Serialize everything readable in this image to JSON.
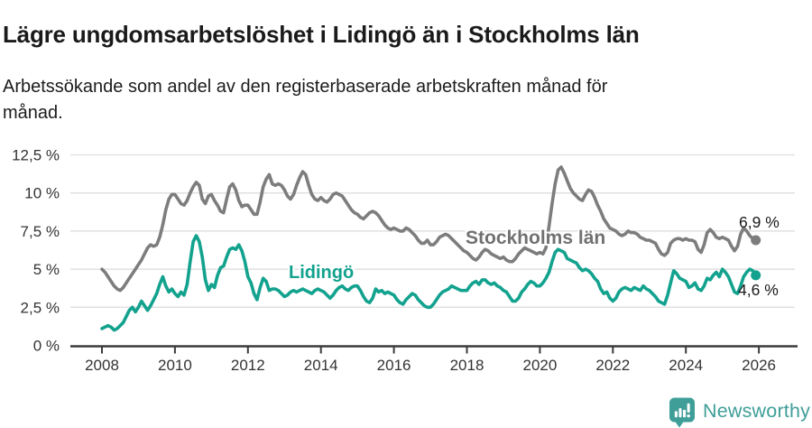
{
  "header": {
    "title": "Lägre ungdomsarbetslöshet i Lidingö än i Stockholms län",
    "subtitle": "Arbetssökande som andel av den registerbaserade arbetskraften månad för månad."
  },
  "chart_data": {
    "type": "line",
    "title": "Lägre ungdomsarbetslöshet i Lidingö än i Stockholms län",
    "x_unit": "month",
    "x_start": "2008-01",
    "x_end": "2025-12",
    "ylim": [
      0,
      12.5
    ],
    "grid": true,
    "legend_position": "inline-labels",
    "y_axis": {
      "ticks": [
        {
          "value": 0,
          "label": "0 %"
        },
        {
          "value": 2.5,
          "label": "2,5 %"
        },
        {
          "value": 5,
          "label": "5 %"
        },
        {
          "value": 7.5,
          "label": "7,5 %"
        },
        {
          "value": 10,
          "label": "10 %"
        },
        {
          "value": 12.5,
          "label": "12,5 %"
        }
      ]
    },
    "x_axis": {
      "ticks": [
        {
          "value": 2008,
          "label": "2008"
        },
        {
          "value": 2010,
          "label": "2010"
        },
        {
          "value": 2012,
          "label": "2012"
        },
        {
          "value": 2014,
          "label": "2014"
        },
        {
          "value": 2016,
          "label": "2016"
        },
        {
          "value": 2018,
          "label": "2018"
        },
        {
          "value": 2020,
          "label": "2020"
        },
        {
          "value": 2022,
          "label": "2022"
        },
        {
          "value": 2024,
          "label": "2024"
        },
        {
          "value": 2026,
          "label": "2026"
        }
      ]
    },
    "series": [
      {
        "name": "Stockholms län",
        "color": "#7d7d7d",
        "end_label": "6,9 %",
        "end_value": 6.9,
        "values": [
          5.0,
          4.8,
          4.5,
          4.2,
          3.9,
          3.7,
          3.6,
          3.8,
          4.1,
          4.4,
          4.7,
          5.0,
          5.3,
          5.6,
          6.0,
          6.4,
          6.6,
          6.5,
          6.6,
          7.1,
          7.9,
          8.9,
          9.6,
          9.9,
          9.9,
          9.6,
          9.3,
          9.2,
          9.5,
          10.0,
          10.4,
          10.7,
          10.5,
          9.6,
          9.3,
          9.8,
          9.9,
          9.5,
          9.2,
          8.8,
          8.7,
          9.6,
          10.4,
          10.6,
          10.2,
          9.5,
          9.1,
          9.2,
          9.2,
          8.9,
          8.6,
          8.6,
          9.4,
          10.4,
          10.9,
          11.2,
          10.6,
          10.5,
          10.6,
          10.5,
          10.2,
          9.8,
          9.6,
          9.9,
          10.5,
          11.0,
          11.4,
          11.2,
          10.5,
          9.9,
          9.6,
          9.5,
          9.7,
          9.5,
          9.4,
          9.6,
          9.9,
          10.0,
          9.9,
          9.8,
          9.5,
          9.2,
          8.9,
          8.7,
          8.6,
          8.4,
          8.3,
          8.5,
          8.7,
          8.8,
          8.7,
          8.5,
          8.2,
          7.9,
          7.7,
          7.6,
          7.7,
          7.6,
          7.5,
          7.5,
          7.7,
          7.6,
          7.4,
          7.2,
          6.9,
          6.7,
          6.7,
          6.9,
          6.6,
          6.6,
          6.8,
          7.1,
          7.2,
          7.3,
          7.2,
          7.0,
          6.8,
          6.6,
          6.4,
          6.2,
          6.1,
          5.9,
          5.7,
          5.6,
          5.8,
          6.1,
          6.3,
          6.2,
          6.0,
          5.9,
          5.8,
          5.7,
          5.8,
          5.6,
          5.5,
          5.5,
          5.7,
          6.0,
          6.2,
          6.4,
          6.3,
          6.2,
          6.1,
          6.0,
          6.1,
          6.0,
          6.4,
          7.8,
          9.3,
          10.6,
          11.5,
          11.7,
          11.3,
          10.8,
          10.3,
          10.0,
          9.8,
          9.6,
          9.5,
          9.9,
          10.2,
          10.1,
          9.7,
          9.2,
          8.8,
          8.3,
          8.0,
          7.7,
          7.6,
          7.5,
          7.3,
          7.2,
          7.3,
          7.5,
          7.4,
          7.4,
          7.3,
          7.1,
          7.0,
          6.9,
          6.9,
          6.8,
          6.7,
          6.3,
          6.0,
          5.9,
          6.1,
          6.7,
          6.9,
          7.0,
          7.0,
          6.9,
          7.0,
          6.9,
          6.9,
          6.8,
          6.3,
          6.1,
          6.6,
          7.4,
          7.6,
          7.4,
          7.1,
          7.0,
          7.1,
          7.0,
          6.9,
          6.5,
          6.2,
          6.5,
          7.3,
          7.7,
          7.5,
          7.2,
          7.0,
          6.9
        ]
      },
      {
        "name": "Lidingö",
        "color": "#12a28e",
        "end_label": "4,6 %",
        "end_value": 4.6,
        "values": [
          1.1,
          1.2,
          1.3,
          1.2,
          1.0,
          1.1,
          1.3,
          1.5,
          1.9,
          2.3,
          2.5,
          2.2,
          2.5,
          2.9,
          2.6,
          2.3,
          2.6,
          3.0,
          3.4,
          4.0,
          4.5,
          3.9,
          3.5,
          3.7,
          3.4,
          3.2,
          3.5,
          3.3,
          4.0,
          5.5,
          6.8,
          7.2,
          6.8,
          5.8,
          4.3,
          3.6,
          4.0,
          3.8,
          4.6,
          5.1,
          5.2,
          5.8,
          6.3,
          6.4,
          6.3,
          6.6,
          6.2,
          5.5,
          4.5,
          4.1,
          3.4,
          3.0,
          3.8,
          4.4,
          4.2,
          3.6,
          3.7,
          3.7,
          3.6,
          3.4,
          3.2,
          3.3,
          3.5,
          3.6,
          3.5,
          3.6,
          3.7,
          3.6,
          3.5,
          3.4,
          3.6,
          3.7,
          3.6,
          3.5,
          3.3,
          3.1,
          3.3,
          3.6,
          3.8,
          3.9,
          3.7,
          3.6,
          3.8,
          3.9,
          3.9,
          3.6,
          3.2,
          2.9,
          2.8,
          3.1,
          3.7,
          3.5,
          3.6,
          3.4,
          3.5,
          3.4,
          3.3,
          3.0,
          2.8,
          2.7,
          3.0,
          3.2,
          3.4,
          3.3,
          3.0,
          2.8,
          2.6,
          2.5,
          2.5,
          2.7,
          3.0,
          3.3,
          3.5,
          3.6,
          3.7,
          3.9,
          3.8,
          3.7,
          3.6,
          3.6,
          3.6,
          3.9,
          4.1,
          4.2,
          4.0,
          4.3,
          4.3,
          4.1,
          4.0,
          4.1,
          3.9,
          3.8,
          3.6,
          3.5,
          3.2,
          2.9,
          2.9,
          3.1,
          3.5,
          3.7,
          4.0,
          4.2,
          4.1,
          3.9,
          3.9,
          4.1,
          4.4,
          4.8,
          5.5,
          6.1,
          6.3,
          6.2,
          6.1,
          5.7,
          5.6,
          5.5,
          5.4,
          5.1,
          4.9,
          5.0,
          4.9,
          4.7,
          4.4,
          4.2,
          3.7,
          3.4,
          3.5,
          3.1,
          2.9,
          3.1,
          3.5,
          3.7,
          3.8,
          3.7,
          3.6,
          3.8,
          3.7,
          3.6,
          3.9,
          3.7,
          3.6,
          3.4,
          3.2,
          2.9,
          2.8,
          2.7,
          3.3,
          4.1,
          4.9,
          4.7,
          4.4,
          4.3,
          4.2,
          3.8,
          3.9,
          4.1,
          3.7,
          3.6,
          3.9,
          4.4,
          4.3,
          4.6,
          4.8,
          4.5,
          5.0,
          4.8,
          4.5,
          4.0,
          3.5,
          3.4,
          3.9,
          4.5,
          4.8,
          5.0,
          4.9,
          4.6
        ]
      }
    ],
    "style": {
      "gridline_color": "#e1e1e1",
      "axis_color": "#3c3c3c",
      "tick_label_color": "#333333",
      "line_width": 3.6
    }
  },
  "branding": {
    "name": "Newsworthy",
    "color": "#3f9e98",
    "icon": "bar-chart-speech-bubble"
  }
}
